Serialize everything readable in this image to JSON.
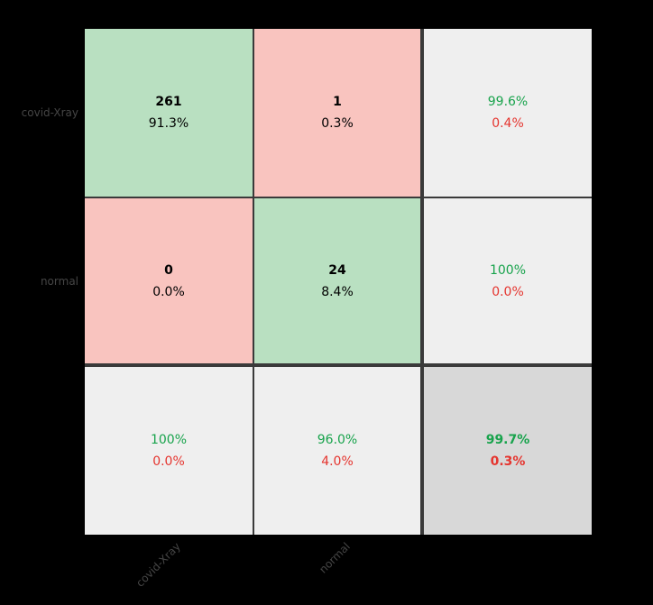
{
  "chart_data": {
    "type": "heatmap",
    "subtype": "confusion-matrix",
    "x_categories": [
      "covid-Xray",
      "normal"
    ],
    "y_categories": [
      "covid-Xray",
      "normal"
    ],
    "counts": [
      [
        261,
        1
      ],
      [
        0,
        24
      ]
    ],
    "cell_percent": [
      [
        "91.3%",
        "0.3%"
      ],
      [
        "0.0%",
        "8.4%"
      ]
    ],
    "row_summary": [
      {
        "correct": "99.6%",
        "incorrect": "0.4%"
      },
      {
        "correct": "100%",
        "incorrect": "0.0%"
      }
    ],
    "col_summary": [
      {
        "correct": "100%",
        "incorrect": "0.0%"
      },
      {
        "correct": "96.0%",
        "incorrect": "4.0%"
      }
    ],
    "overall": {
      "correct": "99.7%",
      "incorrect": "0.3%"
    },
    "legend_position": "none",
    "grid": true
  },
  "colors": {
    "background": "#000000",
    "diagonal_cell_bg": "#b9e0c1",
    "error_cell_bg": "#f9c4bf",
    "summary_cell_bg": "#efefef",
    "overall_cell_bg": "#d8d8d8",
    "grid_line": "#3a3a3a",
    "correct_text": "#18a34c",
    "incorrect_text": "#e5352f",
    "count_text": "#000000",
    "tick_label_text": "#454545"
  }
}
